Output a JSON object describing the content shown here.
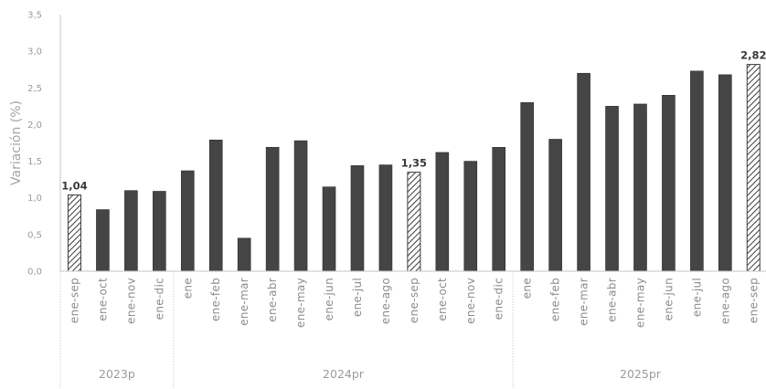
{
  "chart_data": {
    "type": "bar",
    "ylabel": "Variación (%)",
    "ylim": [
      0,
      3.5
    ],
    "yticks": [
      "0,0",
      "0,5",
      "1,0",
      "1,5",
      "2,0",
      "2,5",
      "3,0",
      "3,5"
    ],
    "grid": false,
    "groups": [
      {
        "name": "2023p",
        "categories": [
          "ene-sep",
          "ene-oct",
          "ene-nov",
          "ene-dic"
        ],
        "values": [
          1.04,
          0.84,
          1.1,
          1.09
        ],
        "hatched": [
          true,
          false,
          false,
          false
        ],
        "labels": [
          "1,04",
          "",
          "",
          ""
        ]
      },
      {
        "name": "2024pr",
        "categories": [
          "ene",
          "ene-feb",
          "ene-mar",
          "ene-abr",
          "ene-may",
          "ene-jun",
          "ene-jul",
          "ene-ago",
          "ene-sep",
          "ene-oct",
          "ene-nov",
          "ene-dic"
        ],
        "values": [
          1.37,
          1.79,
          0.45,
          1.69,
          1.78,
          1.15,
          1.44,
          1.45,
          1.35,
          1.62,
          1.5,
          1.69
        ],
        "hatched": [
          false,
          false,
          false,
          false,
          false,
          false,
          false,
          false,
          true,
          false,
          false,
          false
        ],
        "labels": [
          "",
          "",
          "",
          "",
          "",
          "",
          "",
          "",
          "1,35",
          "",
          "",
          ""
        ]
      },
      {
        "name": "2025pr",
        "categories": [
          "ene",
          "ene-feb",
          "ene-mar",
          "ene-abr",
          "ene-may",
          "ene-jun",
          "ene-jul",
          "ene-ago",
          "ene-sep"
        ],
        "values": [
          2.3,
          1.8,
          2.7,
          2.25,
          2.28,
          2.4,
          2.73,
          2.68,
          2.82
        ],
        "hatched": [
          false,
          false,
          false,
          false,
          false,
          false,
          false,
          false,
          true
        ],
        "labels": [
          "",
          "",
          "",
          "",
          "",
          "",
          "",
          "",
          "2,82"
        ]
      }
    ],
    "colors": {
      "solid": "#454545",
      "hatch": "#3d3d3d",
      "axis": "#c4c4c4",
      "separator": "#cfcfcf"
    }
  }
}
